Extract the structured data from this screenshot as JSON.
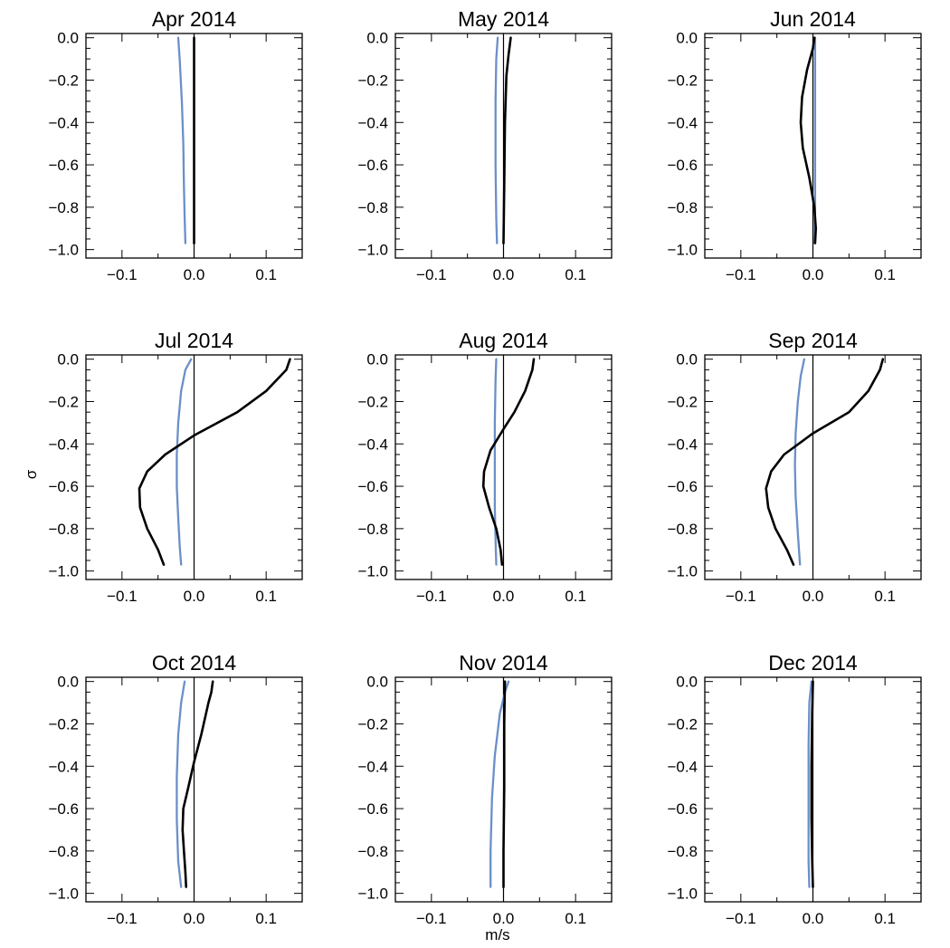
{
  "figure": {
    "xlabel": "m/s",
    "ylabel": "σ"
  },
  "colors": {
    "black_series": "#000000",
    "blue_series": "#6b8fc8",
    "frame": "#000000"
  },
  "axes": {
    "xlim": [
      -0.15,
      0.15
    ],
    "ylim": [
      -1.04,
      0.02
    ],
    "xticks": [
      -0.1,
      0.0,
      0.1
    ],
    "xtick_labels": [
      "−0.1",
      "0.0",
      "0.1"
    ],
    "yticks": [
      0.0,
      -0.2,
      -0.4,
      -0.6,
      -0.8,
      -1.0
    ],
    "ytick_labels": [
      "0.0",
      "−0.2",
      "−0.4",
      "−0.6",
      "−0.8",
      "−1.0"
    ],
    "zero_line": true,
    "grid": false
  },
  "chart_data": [
    {
      "type": "line",
      "title": "Apr 2014",
      "series": [
        {
          "color": "#6b8fc8",
          "x": [
            -0.022,
            -0.02,
            -0.017,
            -0.015,
            -0.014,
            -0.013,
            -0.012
          ],
          "y": [
            0.0,
            -0.1,
            -0.3,
            -0.5,
            -0.7,
            -0.85,
            -0.97
          ]
        },
        {
          "color": "#000000",
          "x": [
            0.0,
            0.0,
            0.0
          ],
          "y": [
            0.0,
            -0.5,
            -0.97
          ]
        }
      ]
    },
    {
      "type": "line",
      "title": "May 2014",
      "series": [
        {
          "color": "#6b8fc8",
          "x": [
            -0.008,
            -0.01,
            -0.011,
            -0.011,
            -0.01,
            -0.009
          ],
          "y": [
            0.0,
            -0.1,
            -0.3,
            -0.6,
            -0.85,
            -0.97
          ]
        },
        {
          "color": "#000000",
          "x": [
            0.01,
            0.007,
            0.004,
            0.002,
            0.001,
            0.0
          ],
          "y": [
            0.0,
            -0.08,
            -0.18,
            -0.4,
            -0.7,
            -0.97
          ]
        }
      ]
    },
    {
      "type": "line",
      "title": "Jun 2014",
      "series": [
        {
          "color": "#6b8fc8",
          "x": [
            0.003,
            0.003,
            0.003,
            0.003,
            0.002
          ],
          "y": [
            0.0,
            -0.2,
            -0.5,
            -0.8,
            -0.97
          ]
        },
        {
          "color": "#000000",
          "x": [
            0.002,
            0.0,
            -0.008,
            -0.015,
            -0.017,
            -0.014,
            -0.005,
            0.002,
            0.004,
            0.003
          ],
          "y": [
            0.0,
            -0.05,
            -0.15,
            -0.28,
            -0.4,
            -0.52,
            -0.66,
            -0.8,
            -0.9,
            -0.97
          ]
        }
      ]
    },
    {
      "type": "line",
      "title": "Jul 2014",
      "series": [
        {
          "color": "#6b8fc8",
          "x": [
            -0.004,
            -0.012,
            -0.018,
            -0.022,
            -0.024,
            -0.024,
            -0.022,
            -0.02,
            -0.018
          ],
          "y": [
            0.0,
            -0.05,
            -0.15,
            -0.3,
            -0.45,
            -0.6,
            -0.75,
            -0.88,
            -0.97
          ]
        },
        {
          "color": "#000000",
          "x": [
            0.133,
            0.128,
            0.1,
            0.06,
            0.0,
            -0.04,
            -0.065,
            -0.076,
            -0.075,
            -0.065,
            -0.05,
            -0.042
          ],
          "y": [
            0.0,
            -0.05,
            -0.15,
            -0.25,
            -0.36,
            -0.45,
            -0.53,
            -0.61,
            -0.7,
            -0.8,
            -0.9,
            -0.97
          ]
        }
      ]
    },
    {
      "type": "line",
      "title": "Aug 2014",
      "series": [
        {
          "color": "#6b8fc8",
          "x": [
            -0.01,
            -0.011,
            -0.012,
            -0.012,
            -0.012,
            -0.011,
            -0.01
          ],
          "y": [
            0.0,
            -0.1,
            -0.3,
            -0.5,
            -0.7,
            -0.85,
            -0.97
          ]
        },
        {
          "color": "#000000",
          "x": [
            0.042,
            0.04,
            0.03,
            0.015,
            0.0,
            -0.018,
            -0.027,
            -0.028,
            -0.02,
            -0.01,
            -0.004,
            -0.002
          ],
          "y": [
            0.0,
            -0.05,
            -0.15,
            -0.25,
            -0.33,
            -0.43,
            -0.53,
            -0.6,
            -0.7,
            -0.8,
            -0.9,
            -0.97
          ]
        }
      ]
    },
    {
      "type": "line",
      "title": "Sep 2014",
      "series": [
        {
          "color": "#6b8fc8",
          "x": [
            -0.012,
            -0.017,
            -0.021,
            -0.024,
            -0.025,
            -0.024,
            -0.021,
            -0.018
          ],
          "y": [
            0.0,
            -0.08,
            -0.2,
            -0.35,
            -0.5,
            -0.65,
            -0.82,
            -0.97
          ]
        },
        {
          "color": "#000000",
          "x": [
            0.097,
            0.093,
            0.077,
            0.05,
            0.0,
            -0.04,
            -0.058,
            -0.065,
            -0.062,
            -0.052,
            -0.036,
            -0.027
          ],
          "y": [
            0.0,
            -0.05,
            -0.15,
            -0.25,
            -0.35,
            -0.45,
            -0.53,
            -0.61,
            -0.7,
            -0.8,
            -0.9,
            -0.97
          ]
        }
      ]
    },
    {
      "type": "line",
      "title": "Oct 2014",
      "series": [
        {
          "color": "#6b8fc8",
          "x": [
            -0.013,
            -0.018,
            -0.022,
            -0.024,
            -0.024,
            -0.022,
            -0.018
          ],
          "y": [
            0.0,
            -0.1,
            -0.25,
            -0.45,
            -0.65,
            -0.85,
            -0.97
          ]
        },
        {
          "color": "#000000",
          "x": [
            0.026,
            0.024,
            0.02,
            0.01,
            0.0,
            -0.008,
            -0.015,
            -0.016,
            -0.014,
            -0.012,
            -0.011
          ],
          "y": [
            0.0,
            -0.05,
            -0.1,
            -0.25,
            -0.38,
            -0.5,
            -0.6,
            -0.7,
            -0.8,
            -0.9,
            -0.97
          ]
        }
      ]
    },
    {
      "type": "line",
      "title": "Nov 2014",
      "series": [
        {
          "color": "#6b8fc8",
          "x": [
            0.007,
            0.002,
            -0.005,
            -0.012,
            -0.016,
            -0.018,
            -0.018
          ],
          "y": [
            0.0,
            -0.05,
            -0.15,
            -0.35,
            -0.55,
            -0.8,
            -0.97
          ]
        },
        {
          "color": "#000000",
          "x": [
            0.002,
            0.001,
            0.001,
            0.0,
            0.0
          ],
          "y": [
            0.0,
            -0.2,
            -0.5,
            -0.8,
            -0.97
          ]
        }
      ]
    },
    {
      "type": "line",
      "title": "Dec 2014",
      "series": [
        {
          "color": "#6b8fc8",
          "x": [
            -0.002,
            -0.005,
            -0.006,
            -0.006,
            -0.006,
            -0.005
          ],
          "y": [
            0.0,
            -0.1,
            -0.3,
            -0.6,
            -0.85,
            -0.97
          ]
        },
        {
          "color": "#000000",
          "x": [
            0.0,
            -0.001,
            -0.002,
            -0.002,
            -0.001,
            0.0
          ],
          "y": [
            0.0,
            -0.15,
            -0.4,
            -0.65,
            -0.85,
            -0.97
          ]
        }
      ]
    }
  ]
}
